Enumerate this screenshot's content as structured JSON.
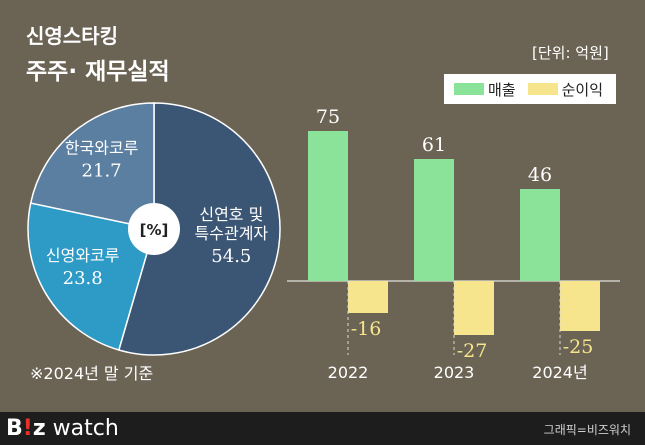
{
  "header": {
    "title_line1": "신영스타킹",
    "title_line2": "주주· 재무실적",
    "unit": "[단위: 억원]"
  },
  "legend": {
    "revenue_label": "매출",
    "net_income_label": "순이익"
  },
  "colors": {
    "background": "#6b6455",
    "revenue": "#8be39a",
    "net_income": "#f6e58c",
    "pie_largest": "#3b5674",
    "pie_second": "#2e9ac6",
    "pie_third": "#5b7fa1"
  },
  "footnote": "※2024년 말 기준",
  "footer": {
    "logo_b": "B",
    "logo_bang": "!",
    "logo_z": "z",
    "logo_watch": " watch",
    "credit": "그래픽=비즈워치"
  },
  "chart_data": [
    {
      "type": "pie",
      "center_label": "[%]",
      "slices": [
        {
          "label_line1": "신연호 및",
          "label_line2": "특수관계자",
          "value": 54.5,
          "display": "54.5"
        },
        {
          "label_line1": "신영와코루",
          "label_line2": "",
          "value": 23.8,
          "display": "23.8"
        },
        {
          "label_line1": "한국와코루",
          "label_line2": "",
          "value": 21.7,
          "display": "21.7"
        }
      ]
    },
    {
      "type": "bar",
      "categories": [
        "2022",
        "2023",
        "2024년"
      ],
      "series": [
        {
          "name": "매출",
          "values": [
            75,
            61,
            46
          ],
          "display": [
            "75",
            "61",
            "46"
          ]
        },
        {
          "name": "순이익",
          "values": [
            -16,
            -27,
            -25
          ],
          "display": [
            "-16",
            "-27",
            "-25"
          ]
        }
      ]
    }
  ]
}
